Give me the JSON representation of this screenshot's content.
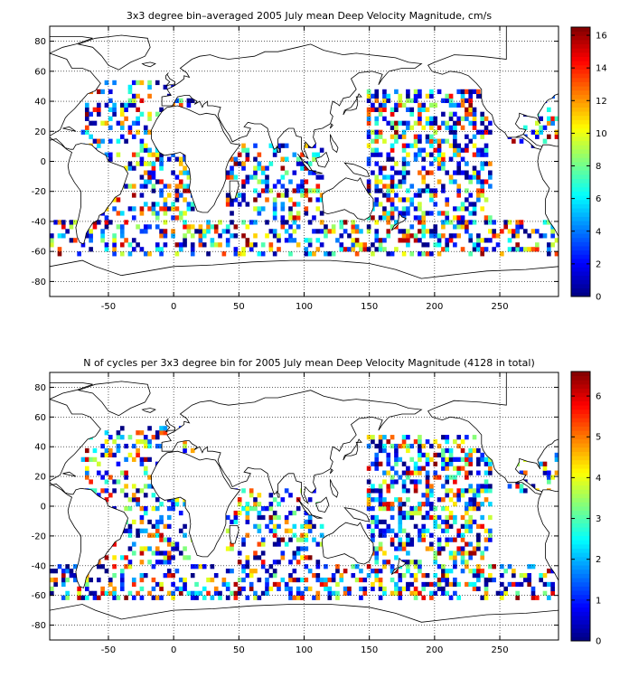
{
  "chart_data": [
    {
      "type": "heatmap",
      "title": "3x3 degree bin–averaged 2005 July mean Deep Velocity Magnitude, cm/s",
      "xlabel": "",
      "ylabel": "",
      "xlim": [
        -95,
        295
      ],
      "ylim": [
        -90,
        90
      ],
      "xticks": [
        -50,
        0,
        50,
        100,
        150,
        200,
        250
      ],
      "yticks": [
        80,
        60,
        40,
        20,
        0,
        -20,
        -40,
        -60,
        -80
      ],
      "grid": true,
      "colorbar": {
        "min": 0,
        "max": 16.5,
        "ticks": [
          0,
          2,
          4,
          6,
          8,
          10,
          12,
          14,
          16
        ],
        "colormap": "jet"
      },
      "bin_size_deg": 3,
      "seed": 17
    },
    {
      "type": "heatmap",
      "title": "N of cycles per 3x3 degree bin for 2005 July mean Deep Velocity Magnitude (4128 in total)",
      "xlabel": "",
      "ylabel": "",
      "xlim": [
        -95,
        295
      ],
      "ylim": [
        -90,
        90
      ],
      "xticks": [
        -50,
        0,
        50,
        100,
        150,
        200,
        250
      ],
      "yticks": [
        80,
        60,
        40,
        20,
        0,
        -20,
        -40,
        -60,
        -80
      ],
      "grid": true,
      "colorbar": {
        "min": 0,
        "max": 6.6,
        "ticks": [
          0,
          1,
          2,
          3,
          4,
          5,
          6
        ],
        "colormap": "jet"
      },
      "bin_size_deg": 3,
      "seed": 91
    }
  ]
}
